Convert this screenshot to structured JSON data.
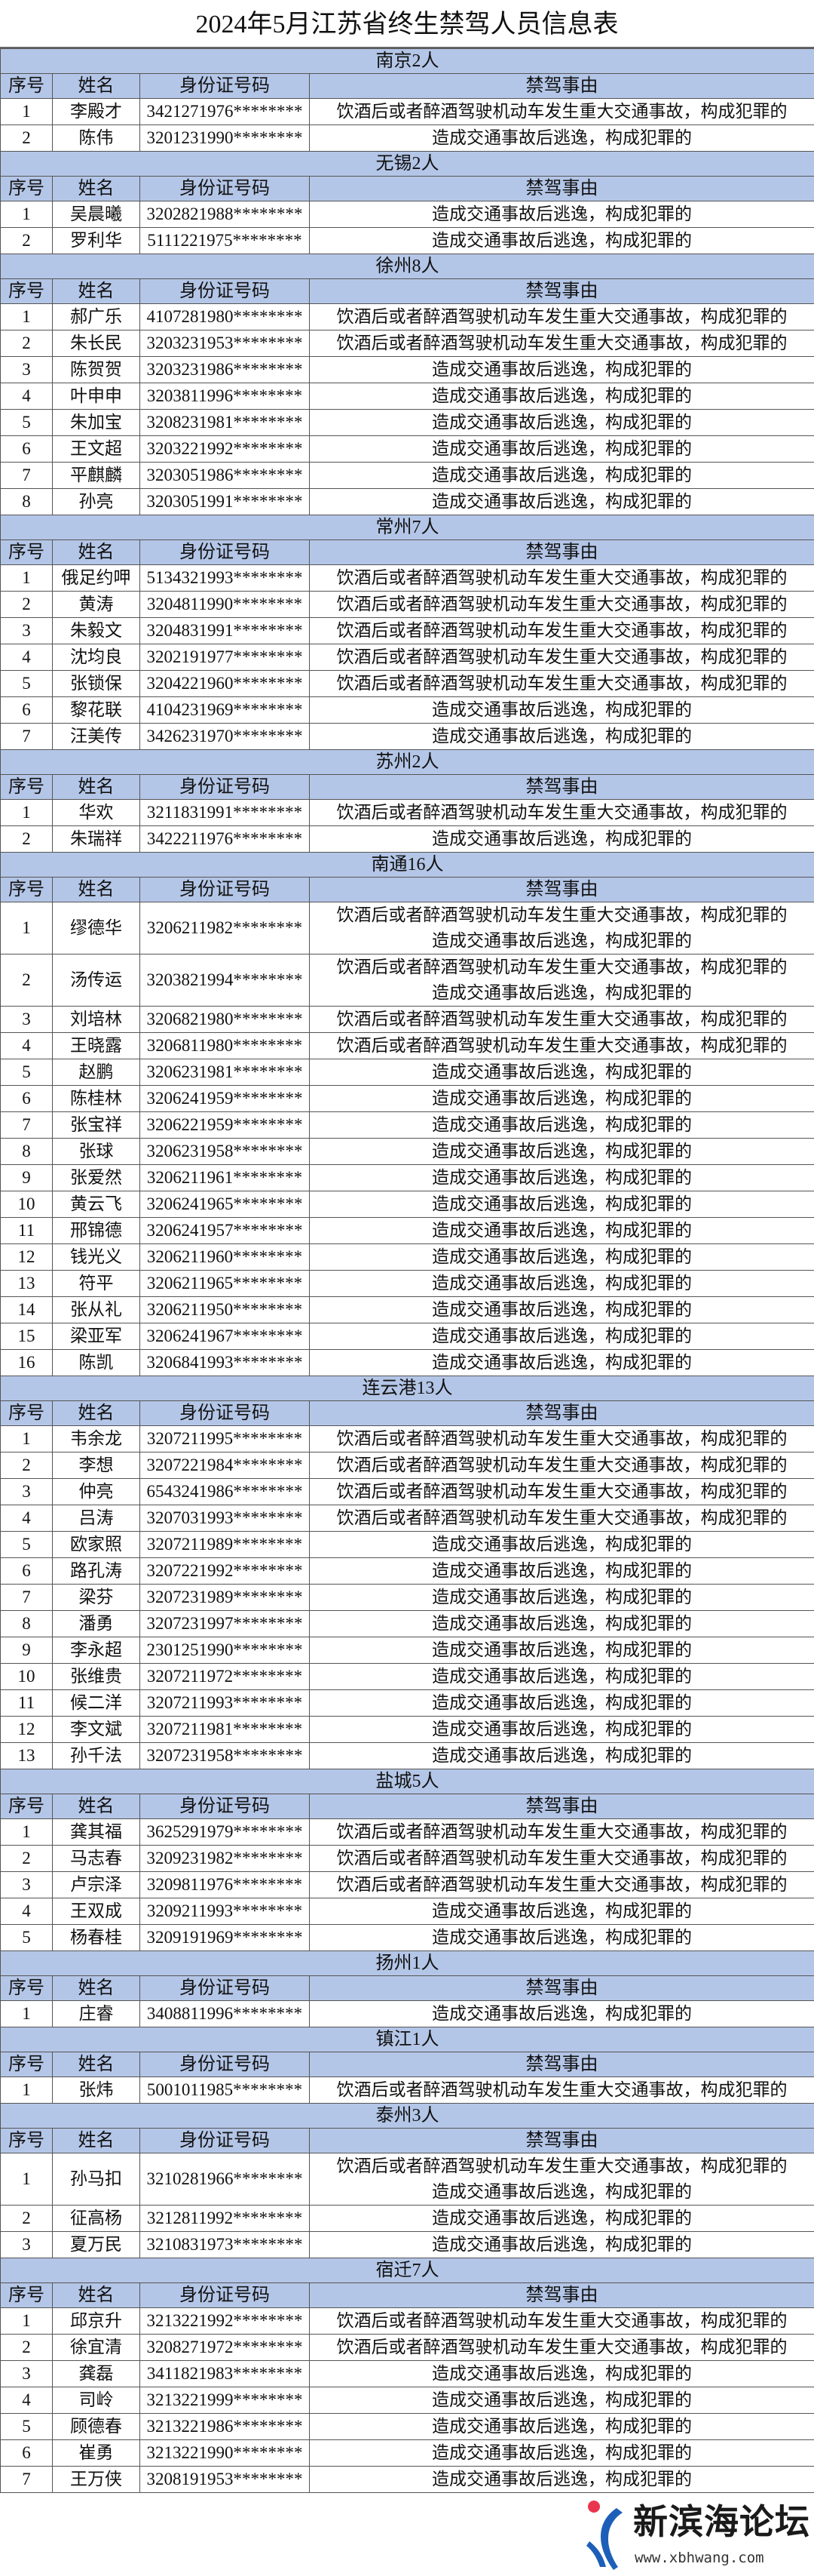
{
  "title": "2024年5月江苏省终生禁驾人员信息表",
  "headers": {
    "no": "序号",
    "name": "姓名",
    "id": "身份证号码",
    "reason": "禁驾事由"
  },
  "colors": {
    "header_bg": "#b4c6e7",
    "border": "#555555"
  },
  "watermark": {
    "brand": "新滨海论坛",
    "url": "www.xbhwang.com"
  },
  "sections": [
    {
      "region": "南京2人",
      "rows": [
        {
          "no": "1",
          "name": "李殿才",
          "id": "3421271976********",
          "reason": [
            "饮酒后或者醉酒驾驶机动车发生重大交通事故，构成犯罪的"
          ]
        },
        {
          "no": "2",
          "name": "陈伟",
          "id": "3201231990********",
          "reason": [
            "造成交通事故后逃逸，构成犯罪的"
          ]
        }
      ]
    },
    {
      "region": "无锡2人",
      "rows": [
        {
          "no": "1",
          "name": "吴晨曦",
          "id": "3202821988********",
          "reason": [
            "造成交通事故后逃逸，构成犯罪的"
          ]
        },
        {
          "no": "2",
          "name": "罗利华",
          "id": "5111221975********",
          "reason": [
            "造成交通事故后逃逸，构成犯罪的"
          ]
        }
      ]
    },
    {
      "region": "徐州8人",
      "rows": [
        {
          "no": "1",
          "name": "郝广乐",
          "id": "4107281980********",
          "reason": [
            "饮酒后或者醉酒驾驶机动车发生重大交通事故，构成犯罪的"
          ]
        },
        {
          "no": "2",
          "name": "朱长民",
          "id": "3203231953********",
          "reason": [
            "饮酒后或者醉酒驾驶机动车发生重大交通事故，构成犯罪的"
          ]
        },
        {
          "no": "3",
          "name": "陈贺贺",
          "id": "3203231986********",
          "reason": [
            "造成交通事故后逃逸，构成犯罪的"
          ]
        },
        {
          "no": "4",
          "name": "叶申申",
          "id": "3203811996********",
          "reason": [
            "造成交通事故后逃逸，构成犯罪的"
          ]
        },
        {
          "no": "5",
          "name": "朱加宝",
          "id": "3208231981********",
          "reason": [
            "造成交通事故后逃逸，构成犯罪的"
          ]
        },
        {
          "no": "6",
          "name": "王文超",
          "id": "3203221992********",
          "reason": [
            "造成交通事故后逃逸，构成犯罪的"
          ]
        },
        {
          "no": "7",
          "name": "平麒麟",
          "id": "3203051986********",
          "reason": [
            "造成交通事故后逃逸，构成犯罪的"
          ]
        },
        {
          "no": "8",
          "name": "孙亮",
          "id": "3203051991********",
          "reason": [
            "造成交通事故后逃逸，构成犯罪的"
          ]
        }
      ]
    },
    {
      "region": "常州7人",
      "rows": [
        {
          "no": "1",
          "name": "俄足约呷",
          "id": "5134321993********",
          "reason": [
            "饮酒后或者醉酒驾驶机动车发生重大交通事故，构成犯罪的"
          ]
        },
        {
          "no": "2",
          "name": "黄涛",
          "id": "3204811990********",
          "reason": [
            "饮酒后或者醉酒驾驶机动车发生重大交通事故，构成犯罪的"
          ]
        },
        {
          "no": "3",
          "name": "朱毅文",
          "id": "3204831991********",
          "reason": [
            "饮酒后或者醉酒驾驶机动车发生重大交通事故，构成犯罪的"
          ]
        },
        {
          "no": "4",
          "name": "沈均良",
          "id": "3202191977********",
          "reason": [
            "饮酒后或者醉酒驾驶机动车发生重大交通事故，构成犯罪的"
          ]
        },
        {
          "no": "5",
          "name": "张锁保",
          "id": "3204221960********",
          "reason": [
            "饮酒后或者醉酒驾驶机动车发生重大交通事故，构成犯罪的"
          ]
        },
        {
          "no": "6",
          "name": "黎花联",
          "id": "4104231969********",
          "reason": [
            "造成交通事故后逃逸，构成犯罪的"
          ]
        },
        {
          "no": "7",
          "name": "汪美传",
          "id": "3426231970********",
          "reason": [
            "造成交通事故后逃逸，构成犯罪的"
          ]
        }
      ]
    },
    {
      "region": "苏州2人",
      "rows": [
        {
          "no": "1",
          "name": "华欢",
          "id": "3211831991********",
          "reason": [
            "饮酒后或者醉酒驾驶机动车发生重大交通事故，构成犯罪的"
          ]
        },
        {
          "no": "2",
          "name": "朱瑞祥",
          "id": "3422211976********",
          "reason": [
            "造成交通事故后逃逸，构成犯罪的"
          ]
        }
      ]
    },
    {
      "region": "南通16人",
      "rows": [
        {
          "no": "1",
          "name": "缪德华",
          "id": "3206211982********",
          "reason": [
            "饮酒后或者醉酒驾驶机动车发生重大交通事故，构成犯罪的",
            "造成交通事故后逃逸，构成犯罪的"
          ]
        },
        {
          "no": "2",
          "name": "汤传运",
          "id": "3203821994********",
          "reason": [
            "饮酒后或者醉酒驾驶机动车发生重大交通事故，构成犯罪的",
            "造成交通事故后逃逸，构成犯罪的"
          ]
        },
        {
          "no": "3",
          "name": "刘培林",
          "id": "3206821980********",
          "reason": [
            "饮酒后或者醉酒驾驶机动车发生重大交通事故，构成犯罪的"
          ]
        },
        {
          "no": "4",
          "name": "王晓露",
          "id": "3206811980********",
          "reason": [
            "饮酒后或者醉酒驾驶机动车发生重大交通事故，构成犯罪的"
          ]
        },
        {
          "no": "5",
          "name": "赵鹏",
          "id": "3206231981********",
          "reason": [
            "造成交通事故后逃逸，构成犯罪的"
          ]
        },
        {
          "no": "6",
          "name": "陈桂林",
          "id": "3206241959********",
          "reason": [
            "造成交通事故后逃逸，构成犯罪的"
          ]
        },
        {
          "no": "7",
          "name": "张宝祥",
          "id": "3206221959********",
          "reason": [
            "造成交通事故后逃逸，构成犯罪的"
          ]
        },
        {
          "no": "8",
          "name": "张球",
          "id": "3206231958********",
          "reason": [
            "造成交通事故后逃逸，构成犯罪的"
          ]
        },
        {
          "no": "9",
          "name": "张爱然",
          "id": "3206211961********",
          "reason": [
            "造成交通事故后逃逸，构成犯罪的"
          ]
        },
        {
          "no": "10",
          "name": "黄云飞",
          "id": "3206241965********",
          "reason": [
            "造成交通事故后逃逸，构成犯罪的"
          ]
        },
        {
          "no": "11",
          "name": "邢锦德",
          "id": "3206241957********",
          "reason": [
            "造成交通事故后逃逸，构成犯罪的"
          ]
        },
        {
          "no": "12",
          "name": "钱光义",
          "id": "3206211960********",
          "reason": [
            "造成交通事故后逃逸，构成犯罪的"
          ]
        },
        {
          "no": "13",
          "name": "符平",
          "id": "3206211965********",
          "reason": [
            "造成交通事故后逃逸，构成犯罪的"
          ]
        },
        {
          "no": "14",
          "name": "张从礼",
          "id": "3206211950********",
          "reason": [
            "造成交通事故后逃逸，构成犯罪的"
          ]
        },
        {
          "no": "15",
          "name": "梁亚军",
          "id": "3206241967********",
          "reason": [
            "造成交通事故后逃逸，构成犯罪的"
          ]
        },
        {
          "no": "16",
          "name": "陈凯",
          "id": "3206841993********",
          "reason": [
            "造成交通事故后逃逸，构成犯罪的"
          ]
        }
      ]
    },
    {
      "region": "连云港13人",
      "rows": [
        {
          "no": "1",
          "name": "韦余龙",
          "id": "3207211995********",
          "reason": [
            "饮酒后或者醉酒驾驶机动车发生重大交通事故，构成犯罪的"
          ]
        },
        {
          "no": "2",
          "name": "李想",
          "id": "3207221984********",
          "reason": [
            "饮酒后或者醉酒驾驶机动车发生重大交通事故，构成犯罪的"
          ]
        },
        {
          "no": "3",
          "name": "仲亮",
          "id": "6543241986********",
          "reason": [
            "饮酒后或者醉酒驾驶机动车发生重大交通事故，构成犯罪的"
          ]
        },
        {
          "no": "4",
          "name": "吕涛",
          "id": "3207031993********",
          "reason": [
            "饮酒后或者醉酒驾驶机动车发生重大交通事故，构成犯罪的"
          ]
        },
        {
          "no": "5",
          "name": "欧家照",
          "id": "3207211989********",
          "reason": [
            "造成交通事故后逃逸，构成犯罪的"
          ]
        },
        {
          "no": "6",
          "name": "路孔涛",
          "id": "3207221992********",
          "reason": [
            "造成交通事故后逃逸，构成犯罪的"
          ]
        },
        {
          "no": "7",
          "name": "梁芬",
          "id": "3207231989********",
          "reason": [
            "造成交通事故后逃逸，构成犯罪的"
          ]
        },
        {
          "no": "8",
          "name": "潘勇",
          "id": "3207231997********",
          "reason": [
            "造成交通事故后逃逸，构成犯罪的"
          ]
        },
        {
          "no": "9",
          "name": "李永超",
          "id": "2301251990********",
          "reason": [
            "造成交通事故后逃逸，构成犯罪的"
          ]
        },
        {
          "no": "10",
          "name": "张维贵",
          "id": "3207211972********",
          "reason": [
            "造成交通事故后逃逸，构成犯罪的"
          ]
        },
        {
          "no": "11",
          "name": "候二洋",
          "id": "3207211993********",
          "reason": [
            "造成交通事故后逃逸，构成犯罪的"
          ]
        },
        {
          "no": "12",
          "name": "李文斌",
          "id": "3207211981********",
          "reason": [
            "造成交通事故后逃逸，构成犯罪的"
          ]
        },
        {
          "no": "13",
          "name": "孙千法",
          "id": "3207231958********",
          "reason": [
            "造成交通事故后逃逸，构成犯罪的"
          ]
        }
      ]
    },
    {
      "region": "盐城5人",
      "rows": [
        {
          "no": "1",
          "name": "龚其福",
          "id": "3625291979********",
          "reason": [
            "饮酒后或者醉酒驾驶机动车发生重大交通事故，构成犯罪的"
          ]
        },
        {
          "no": "2",
          "name": "马志春",
          "id": "3209231982********",
          "reason": [
            "饮酒后或者醉酒驾驶机动车发生重大交通事故，构成犯罪的"
          ]
        },
        {
          "no": "3",
          "name": "卢宗泽",
          "id": "3209811976********",
          "reason": [
            "饮酒后或者醉酒驾驶机动车发生重大交通事故，构成犯罪的"
          ]
        },
        {
          "no": "4",
          "name": "王双成",
          "id": "3209211993********",
          "reason": [
            "造成交通事故后逃逸，构成犯罪的"
          ]
        },
        {
          "no": "5",
          "name": "杨春桂",
          "id": "3209191969********",
          "reason": [
            "造成交通事故后逃逸，构成犯罪的"
          ]
        }
      ]
    },
    {
      "region": "扬州1人",
      "rows": [
        {
          "no": "1",
          "name": "庄睿",
          "id": "3408811996********",
          "reason": [
            "造成交通事故后逃逸，构成犯罪的"
          ]
        }
      ]
    },
    {
      "region": "镇江1人",
      "rows": [
        {
          "no": "1",
          "name": "张炜",
          "id": "5001011985********",
          "reason": [
            "饮酒后或者醉酒驾驶机动车发生重大交通事故，构成犯罪的"
          ]
        }
      ]
    },
    {
      "region": "泰州3人",
      "rows": [
        {
          "no": "1",
          "name": "孙马扣",
          "id": "3210281966********",
          "reason": [
            "饮酒后或者醉酒驾驶机动车发生重大交通事故，构成犯罪的",
            "造成交通事故后逃逸，构成犯罪的"
          ]
        },
        {
          "no": "2",
          "name": "征高杨",
          "id": "3212811992********",
          "reason": [
            "造成交通事故后逃逸，构成犯罪的"
          ]
        },
        {
          "no": "3",
          "name": "夏万民",
          "id": "3210831973********",
          "reason": [
            "造成交通事故后逃逸，构成犯罪的"
          ]
        }
      ]
    },
    {
      "region": "宿迁7人",
      "rows": [
        {
          "no": "1",
          "name": "邱京升",
          "id": "3213221992********",
          "reason": [
            "饮酒后或者醉酒驾驶机动车发生重大交通事故，构成犯罪的"
          ]
        },
        {
          "no": "2",
          "name": "徐宜清",
          "id": "3208271972********",
          "reason": [
            "饮酒后或者醉酒驾驶机动车发生重大交通事故，构成犯罪的"
          ]
        },
        {
          "no": "3",
          "name": "龚磊",
          "id": "3411821983********",
          "reason": [
            "造成交通事故后逃逸，构成犯罪的"
          ]
        },
        {
          "no": "4",
          "name": "司岭",
          "id": "3213221999********",
          "reason": [
            "造成交通事故后逃逸，构成犯罪的"
          ]
        },
        {
          "no": "5",
          "name": "顾德春",
          "id": "3213221986********",
          "reason": [
            "造成交通事故后逃逸，构成犯罪的"
          ]
        },
        {
          "no": "6",
          "name": "崔勇",
          "id": "3213221990********",
          "reason": [
            "造成交通事故后逃逸，构成犯罪的"
          ]
        },
        {
          "no": "7",
          "name": "王万侠",
          "id": "3208191953********",
          "reason": [
            "造成交通事故后逃逸，构成犯罪的"
          ]
        }
      ]
    }
  ]
}
